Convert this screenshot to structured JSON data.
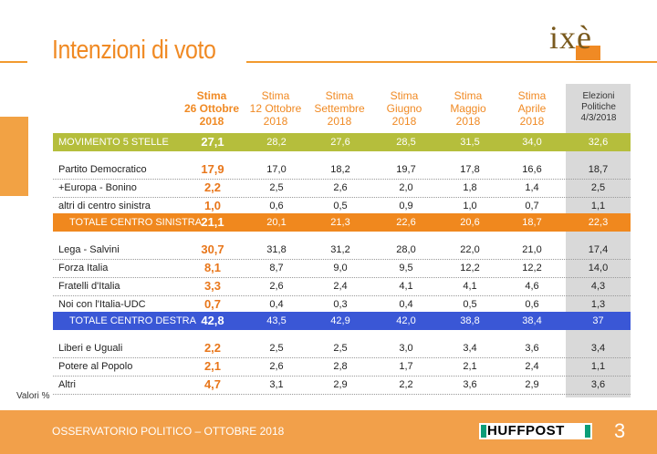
{
  "title": "Intenzioni di voto",
  "logo": "ixè",
  "headers": [
    [
      "Stima",
      "26 Ottobre",
      "2018"
    ],
    [
      "Stima",
      "12 Ottobre",
      "2018"
    ],
    [
      "Stima",
      "Settembre",
      "2018"
    ],
    [
      "Stima",
      "Giugno",
      "2018"
    ],
    [
      "Stima",
      "Maggio",
      "2018"
    ],
    [
      "Stima",
      "Aprile",
      "2018"
    ],
    [
      "Elezioni",
      "Politiche",
      "4/3/2018"
    ]
  ],
  "rows": [
    {
      "label": "MOVIMENTO 5 STELLE",
      "values": [
        "27,1",
        "28,2",
        "27,6",
        "28,5",
        "31,5",
        "34,0",
        "32,6"
      ],
      "type": "m5s"
    },
    {
      "label": "Partito Democratico",
      "values": [
        "17,9",
        "17,0",
        "18,2",
        "19,7",
        "17,8",
        "16,6",
        "18,7"
      ],
      "type": "plain"
    },
    {
      "label": "+Europa - Bonino",
      "values": [
        "2,2",
        "2,5",
        "2,6",
        "2,0",
        "1,8",
        "1,4",
        "2,5"
      ],
      "type": "plain"
    },
    {
      "label": "altri di centro sinistra",
      "values": [
        "1,0",
        "0,6",
        "0,5",
        "0,9",
        "1,0",
        "0,7",
        "1,1"
      ],
      "type": "plain"
    },
    {
      "label": "TOTALE CENTRO SINISTRA",
      "values": [
        "21,1",
        "20,1",
        "21,3",
        "22,6",
        "20,6",
        "18,7",
        "22,3"
      ],
      "type": "tot-sx"
    },
    {
      "label": "Lega - Salvini",
      "values": [
        "30,7",
        "31,8",
        "31,2",
        "28,0",
        "22,0",
        "21,0",
        "17,4"
      ],
      "type": "plain"
    },
    {
      "label": "Forza Italia",
      "values": [
        "8,1",
        "8,7",
        "9,0",
        "9,5",
        "12,2",
        "12,2",
        "14,0"
      ],
      "type": "plain"
    },
    {
      "label": "Fratelli d'Italia",
      "values": [
        "3,3",
        "2,6",
        "2,4",
        "4,1",
        "4,1",
        "4,6",
        "4,3"
      ],
      "type": "plain"
    },
    {
      "label": "Noi con l'Italia-UDC",
      "values": [
        "0,7",
        "0,4",
        "0,3",
        "0,4",
        "0,5",
        "0,6",
        "1,3"
      ],
      "type": "plain"
    },
    {
      "label": "TOTALE CENTRO DESTRA",
      "values": [
        "42,8",
        "43,5",
        "42,9",
        "42,0",
        "38,8",
        "38,4",
        "37"
      ],
      "type": "tot-dx"
    },
    {
      "label": "Liberi e Uguali",
      "values": [
        "2,2",
        "2,5",
        "2,5",
        "3,0",
        "3,4",
        "3,6",
        "3,4"
      ],
      "type": "plain"
    },
    {
      "label": "Potere al Popolo",
      "values": [
        "2,1",
        "2,6",
        "2,8",
        "1,7",
        "2,1",
        "2,4",
        "1,1"
      ],
      "type": "plain"
    },
    {
      "label": "Altri",
      "values": [
        "4,7",
        "3,1",
        "2,9",
        "2,2",
        "3,6",
        "2,9",
        "3,6"
      ],
      "type": "plain"
    }
  ],
  "valori": "Valori %",
  "footer": {
    "text": "OSSERVATORIO POLITICO – OTTOBRE 2018",
    "brand": "HUFFPOST",
    "page": "3"
  },
  "colors": {
    "accent": "#f08a24",
    "m5s": "#b5be3c",
    "centro_sinistra": "#f0881e",
    "centro_destra": "#3a57d6",
    "footer": "#f2a04a",
    "huffpost_green": "#0b9e78"
  }
}
